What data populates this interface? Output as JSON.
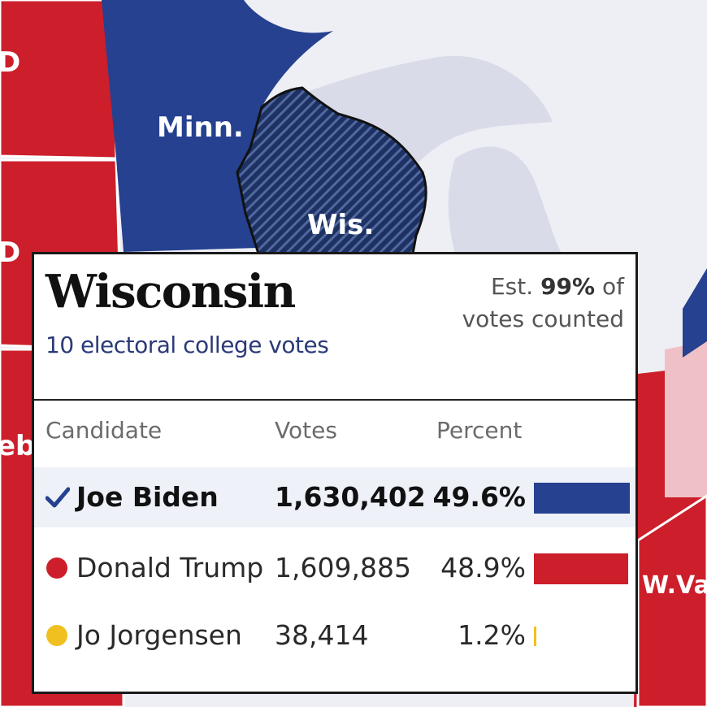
{
  "map": {
    "labels": {
      "minn": "Minn.",
      "wis": "Wis.",
      "wva": "W.Va.",
      "d1": "D",
      "d2": "D",
      "neb": "eb"
    },
    "colors": {
      "republican": "#cc1f2b",
      "democrat": "#25418f",
      "leaning_republican": "#efc1c6",
      "other_state": "#d9dce8",
      "lake": "#eeeff5",
      "border": "#ffffff"
    }
  },
  "panel": {
    "state": "Wisconsin",
    "subtitle": "10 electoral college votes",
    "est_prefix": "Est.",
    "est_value": "99%",
    "est_suffix": "of",
    "est_line2": "votes counted"
  },
  "table": {
    "headers": {
      "candidate": "Candidate",
      "votes": "Votes",
      "percent": "Percent"
    },
    "rows": [
      {
        "name": "Joe Biden",
        "votes": "1,630,402",
        "percent": "49.6%",
        "share": 49.6,
        "color": "#25418f",
        "winner": true,
        "marker": "check-icon"
      },
      {
        "name": "Donald Trump",
        "votes": "1,609,885",
        "percent": "48.9%",
        "share": 48.9,
        "color": "#cc1f2b",
        "winner": false,
        "marker": "red-dot-icon"
      },
      {
        "name": "Jo Jorgensen",
        "votes": "38,414",
        "percent": "1.2%",
        "share": 1.2,
        "color": "#f0c020",
        "winner": false,
        "marker": "yellow-dot-icon"
      }
    ]
  }
}
